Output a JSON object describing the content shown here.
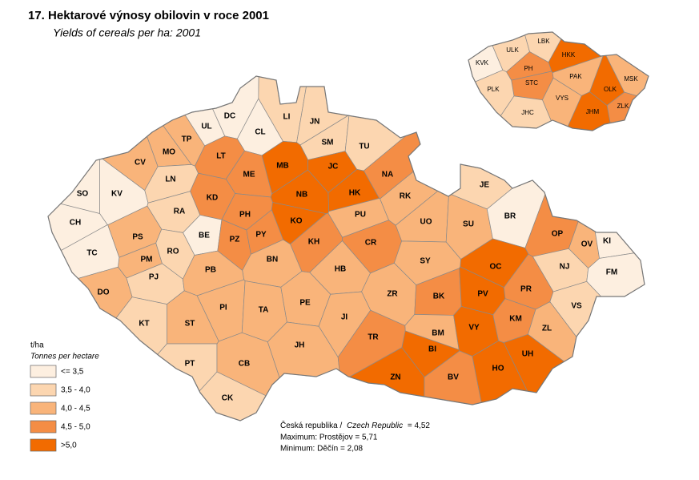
{
  "title": "17. Hektarové výnosy obilovin v roce 2001",
  "subtitle": "Yields of cereals per ha: 2001",
  "legend": {
    "unit": "t/ha",
    "unit_en": "Tonnes per hectare",
    "items": [
      {
        "label": "<= 3,5",
        "color": "#fdefe0"
      },
      {
        "label": "3,5 - 4,0",
        "color": "#fcd6b0"
      },
      {
        "label": "4,0 - 4,5",
        "color": "#f9b47a"
      },
      {
        "label": "4,5 - 5,0",
        "color": "#f48d45"
      },
      {
        "label": ">5,0",
        "color": "#f26b00"
      }
    ]
  },
  "notes": {
    "national": [
      "Česká republika /",
      "Czech Republic",
      "= 4,52"
    ],
    "maximum": "Maximum: Prostějov = 5,71",
    "minimum": "Minimum: Děčín = 2,08"
  },
  "districts": [
    {
      "code": "DC",
      "color": "#fdefe0"
    },
    {
      "code": "UL",
      "color": "#fdefe0"
    },
    {
      "code": "CL",
      "color": "#fdefe0"
    },
    {
      "code": "LI",
      "color": "#fcd6b0"
    },
    {
      "code": "JN",
      "color": "#fcd6b0"
    },
    {
      "code": "SM",
      "color": "#fcd6b0"
    },
    {
      "code": "TU",
      "color": "#fcd6b0"
    },
    {
      "code": "TP",
      "color": "#f9b47a"
    },
    {
      "code": "MO",
      "color": "#f9b47a"
    },
    {
      "code": "CV",
      "color": "#f9b47a"
    },
    {
      "code": "LN",
      "color": "#fcd6b0"
    },
    {
      "code": "LT",
      "color": "#f48d45"
    },
    {
      "code": "ME",
      "color": "#f48d45"
    },
    {
      "code": "MB",
      "color": "#f26b00"
    },
    {
      "code": "JC",
      "color": "#f26b00"
    },
    {
      "code": "NA",
      "color": "#f48d45"
    },
    {
      "code": "SO",
      "color": "#fdefe0"
    },
    {
      "code": "KV",
      "color": "#fdefe0"
    },
    {
      "code": "KD",
      "color": "#f48d45"
    },
    {
      "code": "NB",
      "color": "#f26b00"
    },
    {
      "code": "HK",
      "color": "#f26b00"
    },
    {
      "code": "RK",
      "color": "#f9b47a"
    },
    {
      "code": "JE",
      "color": "#fcd6b0"
    },
    {
      "code": "CH",
      "color": "#fdefe0"
    },
    {
      "code": "RA",
      "color": "#fcd6b0"
    },
    {
      "code": "PH",
      "color": "#f48d45"
    },
    {
      "code": "KO",
      "color": "#f26b00"
    },
    {
      "code": "PU",
      "color": "#f9b47a"
    },
    {
      "code": "UO",
      "color": "#f9b47a"
    },
    {
      "code": "SU",
      "color": "#f9b47a"
    },
    {
      "code": "BR",
      "color": "#fdefe0"
    },
    {
      "code": "OP",
      "color": "#f48d45"
    },
    {
      "code": "OV",
      "color": "#f9b47a"
    },
    {
      "code": "KI",
      "color": "#fdefe0"
    },
    {
      "code": "BE",
      "color": "#fdefe0"
    },
    {
      "code": "PZ",
      "color": "#f48d45"
    },
    {
      "code": "PY",
      "color": "#f48d45"
    },
    {
      "code": "KH",
      "color": "#f48d45"
    },
    {
      "code": "CR",
      "color": "#f48d45"
    },
    {
      "code": "PS",
      "color": "#f9b47a"
    },
    {
      "code": "PM",
      "color": "#f9b47a"
    },
    {
      "code": "RO",
      "color": "#fcd6b0"
    },
    {
      "code": "TC",
      "color": "#fdefe0"
    },
    {
      "code": "BN",
      "color": "#f9b47a"
    },
    {
      "code": "OC",
      "color": "#f26b00"
    },
    {
      "code": "NJ",
      "color": "#fcd6b0"
    },
    {
      "code": "FM",
      "color": "#fdefe0"
    },
    {
      "code": "PJ",
      "color": "#fcd6b0"
    },
    {
      "code": "PB",
      "color": "#f9b47a"
    },
    {
      "code": "HB",
      "color": "#f9b47a"
    },
    {
      "code": "SY",
      "color": "#f9b47a"
    },
    {
      "code": "DO",
      "color": "#f9b47a"
    },
    {
      "code": "PI",
      "color": "#f9b47a"
    },
    {
      "code": "TA",
      "color": "#f9b47a"
    },
    {
      "code": "PE",
      "color": "#f9b47a"
    },
    {
      "code": "ZR",
      "color": "#f9b47a"
    },
    {
      "code": "BK",
      "color": "#f48d45"
    },
    {
      "code": "PV",
      "color": "#f26b00"
    },
    {
      "code": "PR",
      "color": "#f48d45"
    },
    {
      "code": "VS",
      "color": "#fcd6b0"
    },
    {
      "code": "ST",
      "color": "#f9b47a"
    },
    {
      "code": "JI",
      "color": "#f9b47a"
    },
    {
      "code": "BM",
      "color": "#f9b47a"
    },
    {
      "code": "VY",
      "color": "#f26b00"
    },
    {
      "code": "KM",
      "color": "#f48d45"
    },
    {
      "code": "ZL",
      "color": "#f9b47a"
    },
    {
      "code": "KT",
      "color": "#fcd6b0"
    },
    {
      "code": "JH",
      "color": "#f9b47a"
    },
    {
      "code": "TR",
      "color": "#f48d45"
    },
    {
      "code": "BI",
      "color": "#f26b00"
    },
    {
      "code": "UH",
      "color": "#f26b00"
    },
    {
      "code": "PT",
      "color": "#fcd6b0"
    },
    {
      "code": "CB",
      "color": "#f9b47a"
    },
    {
      "code": "ZN",
      "color": "#f26b00"
    },
    {
      "code": "BV",
      "color": "#f48d45"
    },
    {
      "code": "HO",
      "color": "#f26b00"
    },
    {
      "code": "CK",
      "color": "#fcd6b0"
    }
  ],
  "regions": [
    {
      "code": "KVK",
      "color": "#fdefe0"
    },
    {
      "code": "ULK",
      "color": "#fcd6b0"
    },
    {
      "code": "LBK",
      "color": "#fcd6b0"
    },
    {
      "code": "HKK",
      "color": "#f26b00"
    },
    {
      "code": "PH",
      "color": "#f48d45"
    },
    {
      "code": "STC",
      "color": "#f48d45"
    },
    {
      "code": "PAK",
      "color": "#f9b47a"
    },
    {
      "code": "OLK",
      "color": "#f26b00"
    },
    {
      "code": "MSK",
      "color": "#f9b47a"
    },
    {
      "code": "PLK",
      "color": "#fcd6b0"
    },
    {
      "code": "VYS",
      "color": "#f9b47a"
    },
    {
      "code": "ZLK",
      "color": "#f48d45"
    },
    {
      "code": "JHC",
      "color": "#fcd6b0"
    },
    {
      "code": "JHM",
      "color": "#f26b00"
    }
  ]
}
